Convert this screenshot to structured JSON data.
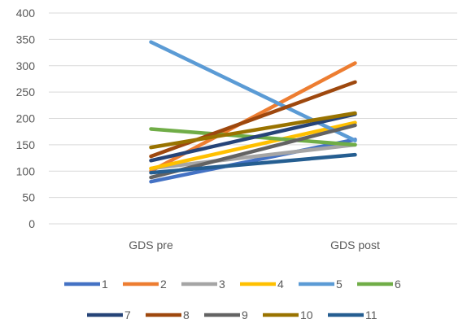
{
  "chart_data": {
    "type": "line",
    "categories": [
      "GDS pre",
      "GDS post"
    ],
    "ylim": [
      0,
      400
    ],
    "yticks": [
      0,
      50,
      100,
      150,
      200,
      250,
      300,
      350,
      400
    ],
    "grid": true,
    "legend_position": "bottom",
    "series": [
      {
        "name": "1",
        "color": "#4472C4",
        "values": [
          80,
          160
        ]
      },
      {
        "name": "2",
        "color": "#ED7D31",
        "values": [
          100,
          305
        ]
      },
      {
        "name": "3",
        "color": "#A5A5A5",
        "values": [
          105,
          150
        ]
      },
      {
        "name": "4",
        "color": "#FFC000",
        "values": [
          105,
          192
        ]
      },
      {
        "name": "5",
        "color": "#5B9BD5",
        "values": [
          345,
          158
        ]
      },
      {
        "name": "6",
        "color": "#70AD47",
        "values": [
          180,
          150
        ]
      },
      {
        "name": "7",
        "color": "#264478",
        "values": [
          120,
          208
        ]
      },
      {
        "name": "8",
        "color": "#9E480E",
        "values": [
          128,
          269
        ]
      },
      {
        "name": "9",
        "color": "#636363",
        "values": [
          88,
          187
        ]
      },
      {
        "name": "10",
        "color": "#997300",
        "values": [
          145,
          210
        ]
      },
      {
        "name": "11",
        "color": "#255E91",
        "values": [
          97,
          131
        ]
      }
    ]
  }
}
